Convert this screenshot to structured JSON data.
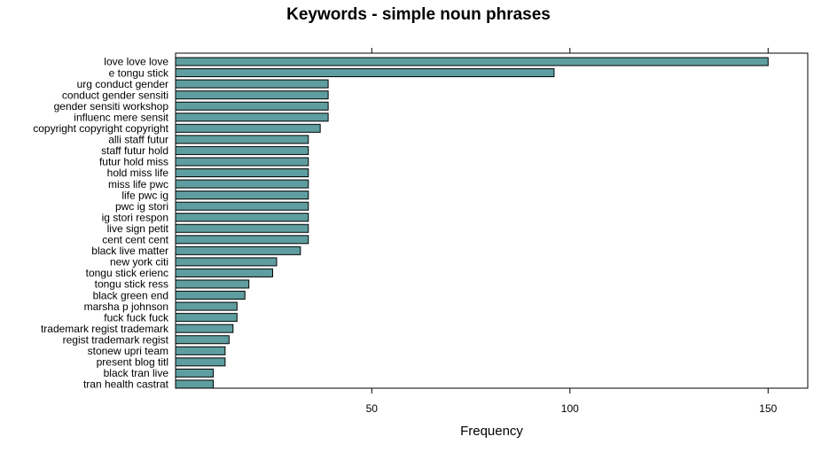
{
  "chart_data": {
    "type": "bar",
    "orientation": "horizontal",
    "title": "Keywords - simple noun phrases",
    "xlabel": "Frequency",
    "ylabel": "",
    "xlim": [
      0.5,
      160
    ],
    "x_ticks": [
      50,
      100,
      150
    ],
    "bar_color": "#5f9ea0",
    "grid": false,
    "categories": [
      "love love love",
      "e tongu stick",
      "urg conduct gender",
      "conduct gender sensiti",
      "gender sensiti workshop",
      "influenc mere sensit",
      "copyright copyright copyright",
      "alli staff futur",
      "staff futur hold",
      "futur hold miss",
      "hold miss life",
      "miss life pwc",
      "life pwc ig",
      "pwc ig stori",
      "ig stori respon",
      "live sign petit",
      "cent cent cent",
      "black live matter",
      "new york citi",
      "tongu stick erienc",
      "tongu stick ress",
      "black green end",
      "marsha p johnson",
      "fuck fuck fuck",
      "trademark regist trademark",
      "regist trademark regist",
      "stonew upri team",
      "present blog titl",
      "black tran live",
      "tran health castrat"
    ],
    "values": [
      150,
      96,
      39,
      39,
      39,
      39,
      37,
      34,
      34,
      34,
      34,
      34,
      34,
      34,
      34,
      34,
      34,
      32,
      26,
      25,
      19,
      18,
      16,
      16,
      15,
      14,
      13,
      13,
      10,
      10
    ]
  }
}
